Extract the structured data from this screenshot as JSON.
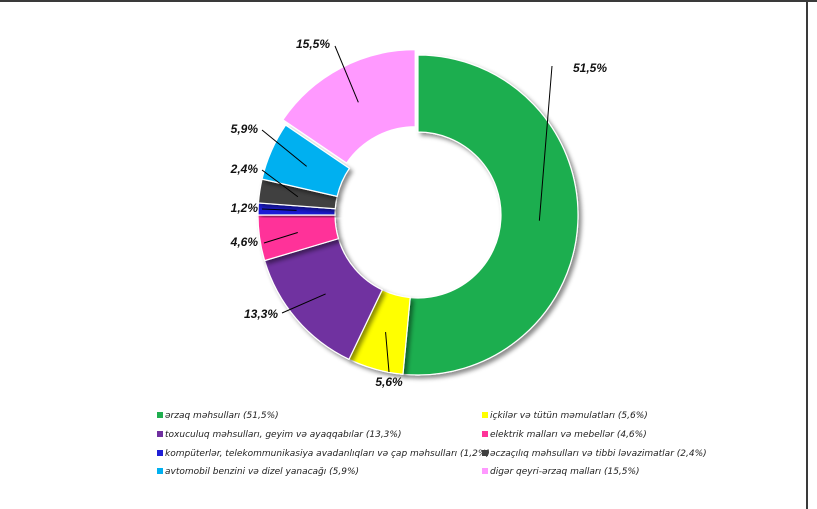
{
  "chart_data": {
    "type": "pie",
    "variant": "donut",
    "legend_position": "bottom",
    "slices": [
      {
        "legend": "ərzaq məhsulları (51,5%)",
        "value": 51.5,
        "label": "51,5%",
        "color": "#1fae4f"
      },
      {
        "legend": "içkilər və tütün məmulatları (5,6%)",
        "value": 5.6,
        "label": "5,6%",
        "color": "#ffff00"
      },
      {
        "legend": "toxuculuq məhsulları, geyim və ayaqqabılar (13,3%)",
        "value": 13.3,
        "label": "13,3%",
        "color": "#7030a0"
      },
      {
        "legend": "elektrik malları və mebellər (4,6%)",
        "value": 4.6,
        "label": "4,6%",
        "color": "#ff3399"
      },
      {
        "legend": "kompüterlər, telekommunikasiya avadanlıqları və çap məhsulları (1,2%)",
        "value": 1.2,
        "label": "1,2%",
        "color": "#1f1fd6"
      },
      {
        "legend": "əczaçılıq məhsulları və tibbi ləvazimatlar (2,4%)",
        "value": 2.4,
        "label": "2,4%",
        "color": "#404040"
      },
      {
        "legend": "avtomobil benzini və dizel yanacağı (5,9%)",
        "value": 5.9,
        "label": "5,9%",
        "color": "#00b0f0"
      },
      {
        "legend": "digər qeyri-ərzaq malları (15,5%)",
        "value": 15.5,
        "label": "15,5%",
        "color": "#ff99ff"
      }
    ]
  }
}
